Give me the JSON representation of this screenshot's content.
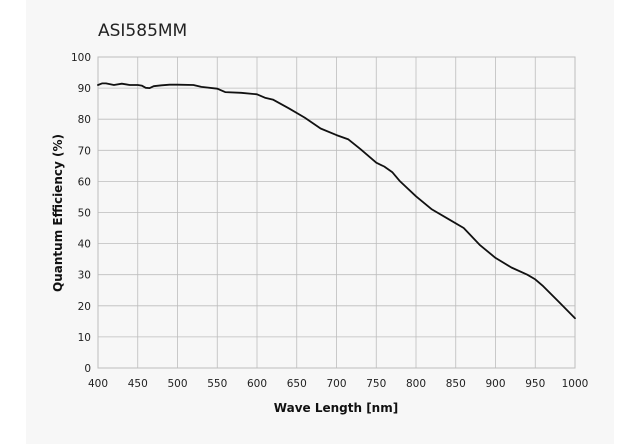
{
  "chart_data": {
    "type": "line",
    "title": "ASI585MM",
    "xlabel": "Wave Length [nm]",
    "ylabel": "Quantum Efficiency (%)",
    "xlim": [
      400,
      1000
    ],
    "ylim": [
      0,
      100
    ],
    "xticks": [
      400,
      450,
      500,
      550,
      600,
      650,
      700,
      750,
      800,
      850,
      900,
      950,
      1000
    ],
    "yticks": [
      0,
      10,
      20,
      30,
      40,
      50,
      60,
      70,
      80,
      90,
      100
    ],
    "grid": true,
    "line_color": "#111111",
    "grid_color": "#bdbdbd",
    "series": [
      {
        "x": [
          400,
          405,
          410,
          420,
          430,
          440,
          450,
          455,
          460,
          465,
          470,
          480,
          490,
          500,
          520,
          530,
          550,
          560,
          580,
          600,
          610,
          620,
          640,
          660,
          680,
          700,
          715,
          730,
          750,
          760,
          770,
          780,
          800,
          820,
          840,
          860,
          880,
          900,
          920,
          940,
          950,
          960,
          980,
          1000
        ],
        "y": [
          91,
          91.5,
          91.5,
          91,
          91.4,
          91,
          91,
          90.8,
          90.1,
          90,
          90.6,
          90.9,
          91.1,
          91.1,
          91,
          90.4,
          89.8,
          88.7,
          88.5,
          88,
          86.9,
          86.3,
          83.5,
          80.5,
          77,
          74.9,
          73.5,
          70.4,
          66,
          64.8,
          63,
          60,
          55.2,
          51,
          48,
          45,
          39.6,
          35.4,
          32.3,
          30,
          28.5,
          26.3,
          21.2,
          16
        ]
      }
    ]
  }
}
